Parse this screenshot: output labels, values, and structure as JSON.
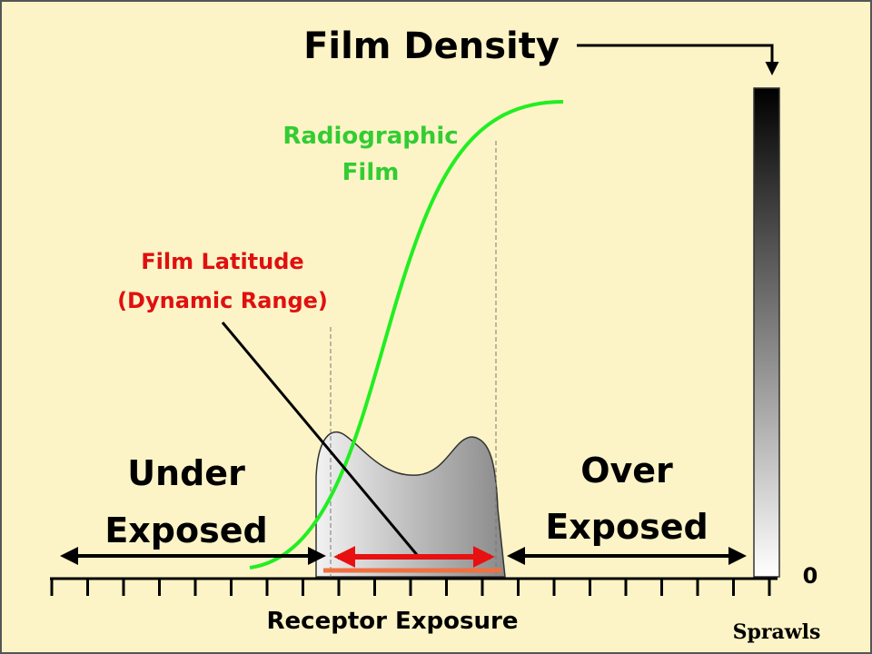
{
  "title": "Film Density",
  "curve_label": [
    "Radiographic",
    "Film"
  ],
  "latitude_label": [
    "Film Latitude",
    "(Dynamic Range)"
  ],
  "under_label": [
    "Under",
    "Exposed"
  ],
  "over_label": [
    "Over",
    "Exposed"
  ],
  "density_zero": "0",
  "x_axis_label": "Receptor Exposure",
  "credit": "Sprawls"
}
